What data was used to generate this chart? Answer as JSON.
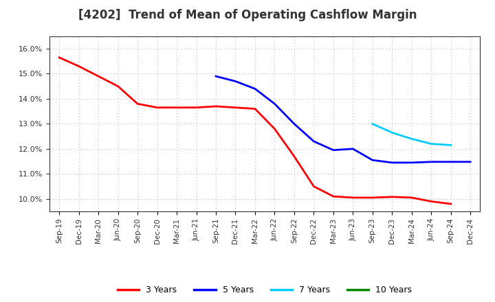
{
  "title": "[4202]  Trend of Mean of Operating Cashflow Margin",
  "title_fontsize": 12,
  "background_color": "#ffffff",
  "plot_bg_color": "#ffffff",
  "grid_color": "#aaaaaa",
  "ylim": [
    0.095,
    0.165
  ],
  "yticks": [
    0.1,
    0.11,
    0.12,
    0.13,
    0.14,
    0.15,
    0.16
  ],
  "series": {
    "3 Years": {
      "color": "#ff0000",
      "x": [
        "Sep-19",
        "Dec-19",
        "Mar-20",
        "Jun-20",
        "Sep-20",
        "Dec-20",
        "Mar-21",
        "Jun-21",
        "Sep-21",
        "Dec-21",
        "Mar-22",
        "Jun-22",
        "Sep-22",
        "Dec-22",
        "Mar-23",
        "Jun-23",
        "Sep-23",
        "Dec-23",
        "Mar-24",
        "Jun-24",
        "Sep-24"
      ],
      "y": [
        0.1565,
        0.153,
        0.149,
        0.145,
        0.138,
        0.1365,
        0.1365,
        0.1365,
        0.137,
        0.1365,
        0.136,
        0.128,
        0.117,
        0.105,
        0.101,
        0.1005,
        0.1005,
        0.1008,
        0.1005,
        0.099,
        0.098
      ]
    },
    "5 Years": {
      "color": "#0000ff",
      "x": [
        "Sep-21",
        "Dec-21",
        "Mar-22",
        "Jun-22",
        "Sep-22",
        "Dec-22",
        "Mar-23",
        "Jun-23",
        "Sep-23",
        "Dec-23",
        "Mar-24",
        "Jun-24",
        "Sep-24",
        "Dec-24"
      ],
      "y": [
        0.149,
        0.147,
        0.144,
        0.138,
        0.13,
        0.123,
        0.1195,
        0.12,
        0.1155,
        0.1145,
        0.1145,
        0.1148,
        0.1148,
        0.1148
      ]
    },
    "7 Years": {
      "color": "#00ccff",
      "x": [
        "Sep-23",
        "Dec-23",
        "Mar-24",
        "Jun-24",
        "Sep-24"
      ],
      "y": [
        0.13,
        0.1265,
        0.124,
        0.122,
        0.1215
      ]
    },
    "10 Years": {
      "color": "#008800",
      "x": [],
      "y": []
    }
  },
  "x_labels": [
    "Sep-19",
    "Dec-19",
    "Mar-20",
    "Jun-20",
    "Sep-20",
    "Dec-20",
    "Mar-21",
    "Jun-21",
    "Sep-21",
    "Dec-21",
    "Mar-22",
    "Jun-22",
    "Sep-22",
    "Dec-22",
    "Mar-23",
    "Jun-23",
    "Sep-23",
    "Dec-23",
    "Mar-24",
    "Jun-24",
    "Sep-24",
    "Dec-24"
  ],
  "legend_items": [
    {
      "label": "3 Years",
      "color": "#ff0000"
    },
    {
      "label": "5 Years",
      "color": "#0000ff"
    },
    {
      "label": "7 Years",
      "color": "#00ccff"
    },
    {
      "label": "10 Years",
      "color": "#008800"
    }
  ]
}
